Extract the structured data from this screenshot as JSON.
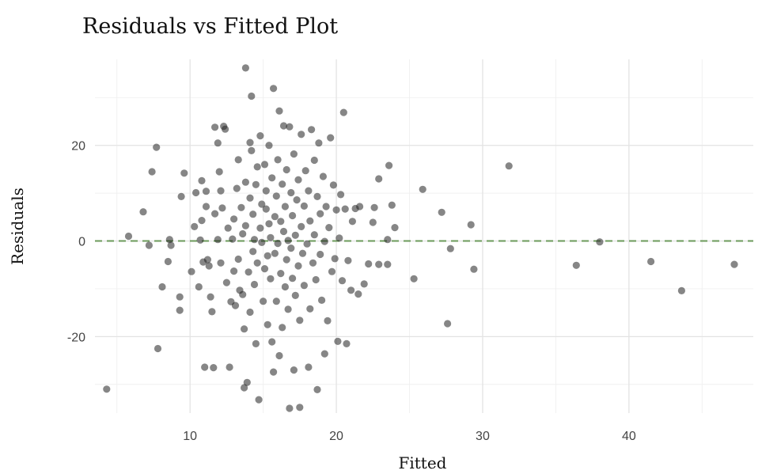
{
  "chart_data": {
    "type": "scatter",
    "title": "Residuals vs Fitted Plot",
    "xlabel": "Fitted",
    "ylabel": "Residuals",
    "xlim": [
      3.5,
      48.5
    ],
    "ylim": [
      -36,
      38
    ],
    "x_ticks": [
      10,
      20,
      30,
      40
    ],
    "y_ticks": [
      -20,
      0,
      20
    ],
    "x_tick_labels": [
      "10",
      "20",
      "30",
      "40"
    ],
    "y_tick_labels": [
      "-20",
      "0",
      "20"
    ],
    "grid": true,
    "reference_line": {
      "y": 0,
      "style": "dashed",
      "color": "#6b9a5a"
    },
    "point_color": "#222222",
    "points": [
      [
        4.3,
        -31
      ],
      [
        5.8,
        1
      ],
      [
        6.8,
        6.1
      ],
      [
        7.2,
        -0.9
      ],
      [
        7.4,
        14.5
      ],
      [
        7.7,
        19.6
      ],
      [
        7.8,
        -22.5
      ],
      [
        8.1,
        -9.6
      ],
      [
        8.5,
        -4.3
      ],
      [
        8.6,
        0.3
      ],
      [
        8.7,
        -0.9
      ],
      [
        9.3,
        -14.5
      ],
      [
        9.3,
        -11.7
      ],
      [
        9.4,
        9.3
      ],
      [
        9.6,
        14.2
      ],
      [
        10.1,
        -6.4
      ],
      [
        10.3,
        3
      ],
      [
        10.4,
        10.1
      ],
      [
        10.6,
        -9.6
      ],
      [
        10.7,
        0.2
      ],
      [
        10.8,
        12.6
      ],
      [
        10.8,
        4.3
      ],
      [
        10.9,
        -4.4
      ],
      [
        11,
        -26.4
      ],
      [
        11.1,
        7.2
      ],
      [
        11.1,
        10.4
      ],
      [
        11.2,
        -3.9
      ],
      [
        11.3,
        -5.2
      ],
      [
        11.4,
        -11.7
      ],
      [
        11.5,
        -14.8
      ],
      [
        11.6,
        -26.5
      ],
      [
        11.7,
        23.8
      ],
      [
        11.7,
        5.7
      ],
      [
        11.9,
        20.5
      ],
      [
        11.9,
        0.3
      ],
      [
        12,
        14.5
      ],
      [
        12.1,
        10.5
      ],
      [
        12.1,
        -4.6
      ],
      [
        12.2,
        6.9
      ],
      [
        12.3,
        24
      ],
      [
        12.4,
        23.4
      ],
      [
        12.5,
        -8.7
      ],
      [
        12.6,
        2.7
      ],
      [
        12.7,
        -26.4
      ],
      [
        12.8,
        -12.7
      ],
      [
        12.9,
        0.4
      ],
      [
        13,
        4.6
      ],
      [
        13,
        -6.3
      ],
      [
        13.1,
        -13.5
      ],
      [
        13.2,
        11
      ],
      [
        13.3,
        -3.8
      ],
      [
        13.3,
        17
      ],
      [
        13.4,
        -10.3
      ],
      [
        13.5,
        7
      ],
      [
        13.6,
        1.5
      ],
      [
        13.6,
        -11.2
      ],
      [
        13.7,
        -18.4
      ],
      [
        13.7,
        -30.7
      ],
      [
        13.8,
        36.2
      ],
      [
        13.8,
        12.3
      ],
      [
        13.8,
        3.2
      ],
      [
        13.9,
        -29.6
      ],
      [
        14,
        -6.5
      ],
      [
        14.1,
        20.6
      ],
      [
        14.1,
        9
      ],
      [
        14.1,
        -14.9
      ],
      [
        14.2,
        30.3
      ],
      [
        14.2,
        18.9
      ],
      [
        14.3,
        5.6
      ],
      [
        14.3,
        -2.2
      ],
      [
        14.4,
        0.3
      ],
      [
        14.4,
        -9.1
      ],
      [
        14.5,
        -21.5
      ],
      [
        14.5,
        11.8
      ],
      [
        14.6,
        15.5
      ],
      [
        14.6,
        -4.6
      ],
      [
        14.7,
        -33.2
      ],
      [
        14.8,
        22
      ],
      [
        14.8,
        2.7
      ],
      [
        14.9,
        7.7
      ],
      [
        14.9,
        -0.3
      ],
      [
        15,
        -12.6
      ],
      [
        15.1,
        16
      ],
      [
        15.1,
        -5.8
      ],
      [
        15.2,
        6.7
      ],
      [
        15.2,
        10.5
      ],
      [
        15.3,
        -17.5
      ],
      [
        15.3,
        -3.1
      ],
      [
        15.4,
        3.6
      ],
      [
        15.4,
        20
      ],
      [
        15.5,
        -7.9
      ],
      [
        15.5,
        0.7
      ],
      [
        15.6,
        13.2
      ],
      [
        15.6,
        -21.1
      ],
      [
        15.7,
        31.9
      ],
      [
        15.7,
        -27.4
      ],
      [
        15.8,
        5.1
      ],
      [
        15.8,
        -2.6
      ],
      [
        15.9,
        9.4
      ],
      [
        15.9,
        -12.6
      ],
      [
        16,
        17
      ],
      [
        16,
        -0.5
      ],
      [
        16.1,
        27.2
      ],
      [
        16.1,
        -24
      ],
      [
        16.2,
        4.1
      ],
      [
        16.2,
        -6.8
      ],
      [
        16.3,
        11.9
      ],
      [
        16.3,
        -18.1
      ],
      [
        16.4,
        24.1
      ],
      [
        16.4,
        2
      ],
      [
        16.5,
        -9.6
      ],
      [
        16.5,
        7.2
      ],
      [
        16.6,
        -3.9
      ],
      [
        16.6,
        14.9
      ],
      [
        16.7,
        -14.3
      ],
      [
        16.7,
        0.1
      ],
      [
        16.8,
        23.9
      ],
      [
        16.8,
        -35
      ],
      [
        16.9,
        10.1
      ],
      [
        16.9,
        -1.5
      ],
      [
        17,
        -7.8
      ],
      [
        17,
        5.3
      ],
      [
        17.1,
        -27
      ],
      [
        17.1,
        18.2
      ],
      [
        17.2,
        -11.4
      ],
      [
        17.2,
        1.2
      ],
      [
        17.3,
        8.6
      ],
      [
        17.4,
        -5.2
      ],
      [
        17.4,
        12.8
      ],
      [
        17.5,
        -34.8
      ],
      [
        17.5,
        -16.6
      ],
      [
        17.6,
        3
      ],
      [
        17.6,
        22.3
      ],
      [
        17.7,
        -2.6
      ],
      [
        17.8,
        7.3
      ],
      [
        17.8,
        -9.3
      ],
      [
        17.9,
        14.7
      ],
      [
        18,
        -0.6
      ],
      [
        18.1,
        -26.4
      ],
      [
        18.1,
        10.5
      ],
      [
        18.2,
        -14.2
      ],
      [
        18.2,
        4.2
      ],
      [
        18.3,
        23.3
      ],
      [
        18.4,
        -4.6
      ],
      [
        18.5,
        16.9
      ],
      [
        18.5,
        1.3
      ],
      [
        18.6,
        -8.1
      ],
      [
        18.7,
        -31.1
      ],
      [
        18.7,
        9.3
      ],
      [
        18.8,
        20.5
      ],
      [
        18.9,
        -2.8
      ],
      [
        18.9,
        5.7
      ],
      [
        19,
        -12.4
      ],
      [
        19.1,
        13.5
      ],
      [
        19.2,
        -23.6
      ],
      [
        19.2,
        -0.1
      ],
      [
        19.3,
        7.2
      ],
      [
        19.4,
        -16.7
      ],
      [
        19.5,
        2.8
      ],
      [
        19.6,
        21.6
      ],
      [
        19.7,
        -6.4
      ],
      [
        19.8,
        11.7
      ],
      [
        19.9,
        -3.7
      ],
      [
        20,
        6.5
      ],
      [
        20.1,
        -21
      ],
      [
        20.2,
        0.6
      ],
      [
        20.3,
        9.7
      ],
      [
        20.4,
        -8.3
      ],
      [
        20.5,
        26.9
      ],
      [
        20.6,
        6.7
      ],
      [
        20.7,
        -21.5
      ],
      [
        20.8,
        -4.1
      ],
      [
        21,
        -10.3
      ],
      [
        21.1,
        4.1
      ],
      [
        21.3,
        6.8
      ],
      [
        21.5,
        -11.1
      ],
      [
        21.6,
        7.2
      ],
      [
        21.9,
        -9
      ],
      [
        22.2,
        -4.8
      ],
      [
        22.5,
        3.9
      ],
      [
        22.6,
        7
      ],
      [
        22.9,
        -4.9
      ],
      [
        22.9,
        13
      ],
      [
        23.5,
        0.3
      ],
      [
        23.6,
        15.8
      ],
      [
        23.8,
        7.5
      ],
      [
        24,
        2.8
      ],
      [
        23.5,
        -4.9
      ],
      [
        25.3,
        -7.9
      ],
      [
        25.9,
        10.8
      ],
      [
        27.2,
        6
      ],
      [
        27.6,
        -17.3
      ],
      [
        27.8,
        -1.6
      ],
      [
        29.2,
        3.4
      ],
      [
        29.4,
        -5.9
      ],
      [
        31.8,
        15.7
      ],
      [
        36.4,
        -5.1
      ],
      [
        38,
        -0.2
      ],
      [
        41.5,
        -4.3
      ],
      [
        43.6,
        -10.4
      ],
      [
        47.2,
        -4.9
      ]
    ]
  }
}
